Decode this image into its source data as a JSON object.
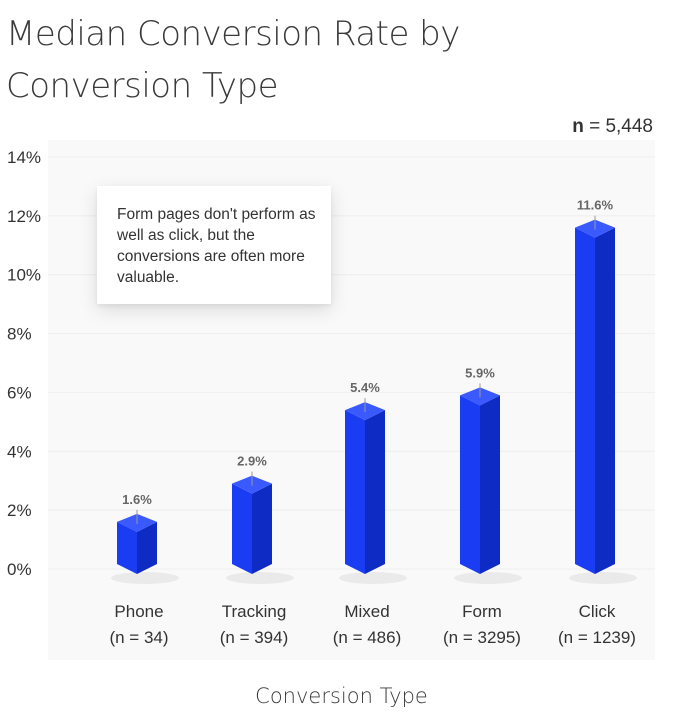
{
  "title": "Median Conversion Rate by Conversion Type",
  "sample_size": {
    "label": "n",
    "value": "= 5,448"
  },
  "callout": {
    "text": "Form pages don't perform as well as click, but the conversions are often more valuable."
  },
  "colors": {
    "bar_front": "#1a3cf2",
    "bar_side": "#0e2cc4",
    "bar_top": "#3a59ff",
    "grid": "#eeeeee",
    "plot_bg": "#f9f9f9"
  },
  "chart_data": {
    "type": "bar",
    "title": "Median Conversion Rate by Conversion Type",
    "xlabel": "Conversion Type",
    "ylabel": "",
    "ylim": [
      0,
      14
    ],
    "yticks": [
      "0%",
      "2%",
      "4%",
      "6%",
      "8%",
      "10%",
      "12%",
      "14%"
    ],
    "categories": [
      "Phone",
      "Tracking",
      "Mixed",
      "Form",
      "Click"
    ],
    "sublabels": [
      "(n = 34)",
      "(n = 394)",
      "(n = 486)",
      "(n = 3295)",
      "(n = 1239)"
    ],
    "values": [
      1.6,
      2.9,
      5.4,
      5.9,
      11.6
    ],
    "value_labels": [
      "1.6%",
      "2.9%",
      "5.4%",
      "5.9%",
      "11.6%"
    ],
    "grid": true
  }
}
